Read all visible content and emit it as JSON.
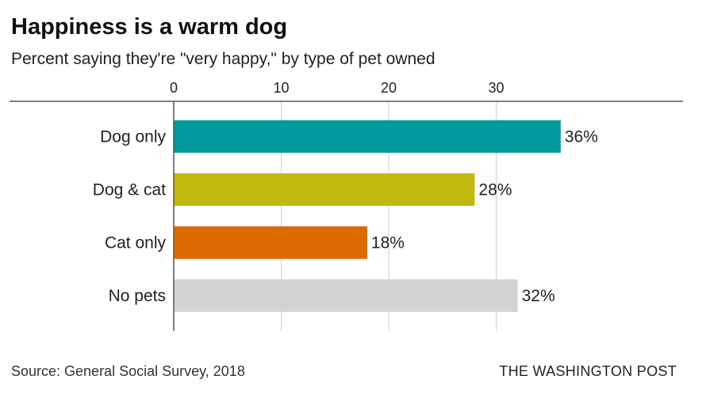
{
  "header": {
    "title": "Happiness is a warm dog",
    "subtitle": "Percent saying they're \"very happy,\" by type of pet owned"
  },
  "footer": {
    "source": "Source: General Social Survey, 2018",
    "brand": "THE WASHINGTON POST"
  },
  "chart_data": {
    "type": "bar",
    "orientation": "horizontal",
    "title": "Happiness is a warm dog",
    "subtitle": "Percent saying they're \"very happy,\" by type of pet owned",
    "categories": [
      "Dog only",
      "Dog & cat",
      "Cat only",
      "No pets"
    ],
    "values": [
      36,
      28,
      18,
      32
    ],
    "value_labels": [
      "36%",
      "28%",
      "18%",
      "32%"
    ],
    "colors": [
      "#00999e",
      "#c2b80e",
      "#dd6a00",
      "#d3d3d3"
    ],
    "xlim": [
      0,
      40
    ],
    "xticks": [
      0,
      10,
      20,
      30
    ],
    "xtick_labels": [
      "0",
      "10",
      "20",
      "30"
    ],
    "xaxis_position": "top",
    "grid": true,
    "legend": "none"
  }
}
